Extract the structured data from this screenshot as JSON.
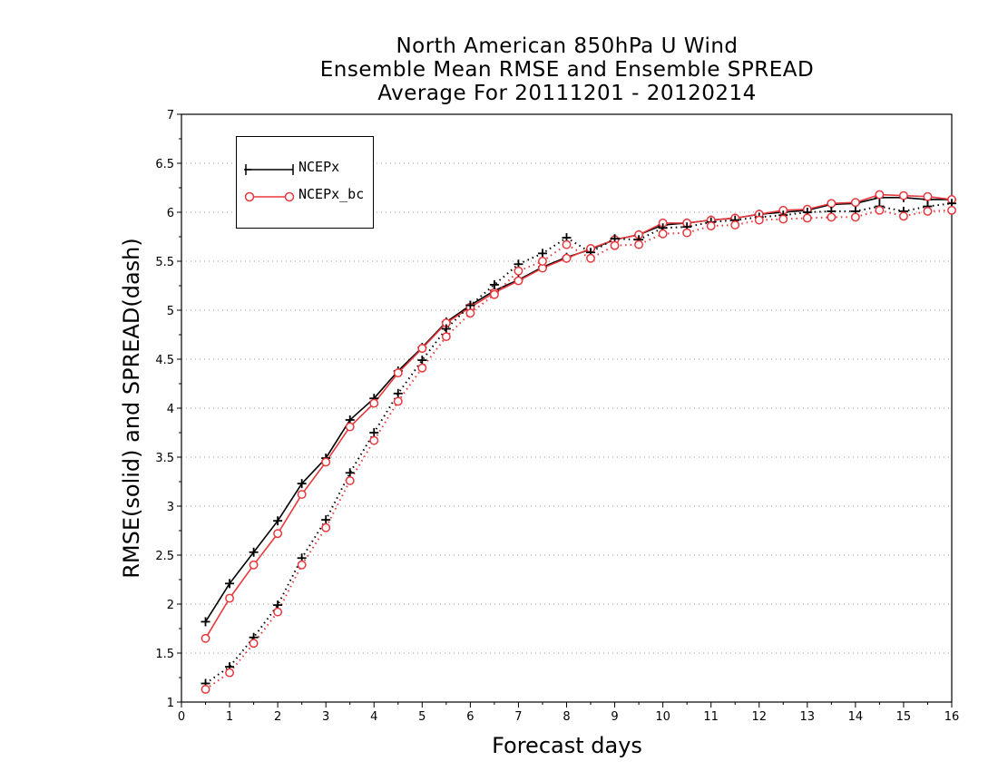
{
  "chart_data": {
    "type": "line",
    "title": [
      "North American 850hPa U Wind",
      "Ensemble Mean RMSE and Ensemble SPREAD",
      "Average For 20111201 - 20120214"
    ],
    "xlabel": "Forecast days",
    "ylabel": "RMSE(solid) and SPREAD(dash)",
    "xlim": [
      0,
      16
    ],
    "ylim": [
      1,
      7
    ],
    "xticks": [
      "0",
      "1",
      "2",
      "3",
      "4",
      "5",
      "6",
      "7",
      "8",
      "9",
      "10",
      "11",
      "12",
      "13",
      "14",
      "15",
      "16"
    ],
    "yticks": [
      "1",
      "1.5",
      "2",
      "2.5",
      "3",
      "3.5",
      "4",
      "4.5",
      "5",
      "5.5",
      "6",
      "6.5",
      "7"
    ],
    "grid": "horizontal dotted",
    "legend_position": "top-left",
    "x": [
      0.5,
      1,
      1.5,
      2,
      2.5,
      3,
      3.5,
      4,
      4.5,
      5,
      5.5,
      6,
      6.5,
      7,
      7.5,
      8,
      8.5,
      9,
      9.5,
      10,
      10.5,
      11,
      11.5,
      12,
      12.5,
      13,
      13.5,
      14,
      14.5,
      15,
      15.5,
      16
    ],
    "series": [
      {
        "name": "NCEPx",
        "metric": "RMSE",
        "style": "solid",
        "marker": "plus",
        "color": "#000000",
        "values": [
          1.82,
          2.21,
          2.53,
          2.85,
          3.23,
          3.49,
          3.88,
          4.1,
          4.38,
          4.62,
          4.88,
          5.05,
          5.2,
          5.31,
          5.44,
          5.54,
          5.62,
          5.72,
          5.77,
          5.87,
          5.89,
          5.92,
          5.94,
          5.98,
          6.0,
          6.02,
          6.08,
          6.09,
          6.15,
          6.15,
          6.13,
          6.13
        ]
      },
      {
        "name": "NCEPx_bc",
        "metric": "RMSE",
        "style": "solid",
        "marker": "circle",
        "color": "#e8383d",
        "values": [
          1.65,
          2.06,
          2.4,
          2.72,
          3.12,
          3.45,
          3.81,
          4.05,
          4.36,
          4.61,
          4.87,
          5.03,
          5.18,
          5.3,
          5.43,
          5.53,
          5.63,
          5.72,
          5.77,
          5.89,
          5.89,
          5.92,
          5.94,
          5.98,
          6.02,
          6.03,
          6.09,
          6.1,
          6.18,
          6.17,
          6.16,
          6.13
        ]
      },
      {
        "name": "NCEPx",
        "metric": "SPREAD",
        "style": "dash",
        "marker": "plus",
        "color": "#000000",
        "values": [
          1.19,
          1.36,
          1.66,
          1.99,
          2.47,
          2.86,
          3.34,
          3.75,
          4.15,
          4.49,
          4.81,
          5.05,
          5.26,
          5.47,
          5.58,
          5.74,
          5.59,
          5.73,
          5.72,
          5.84,
          5.85,
          5.9,
          5.92,
          5.95,
          5.97,
          6.0,
          6.01,
          6.01,
          6.06,
          6.01,
          6.06,
          6.09
        ]
      },
      {
        "name": "NCEPx_bc",
        "metric": "SPREAD",
        "style": "dash",
        "marker": "circle",
        "color": "#e8383d",
        "values": [
          1.13,
          1.3,
          1.6,
          1.92,
          2.4,
          2.78,
          3.26,
          3.67,
          4.07,
          4.41,
          4.73,
          4.97,
          5.16,
          5.4,
          5.5,
          5.67,
          5.53,
          5.66,
          5.67,
          5.78,
          5.79,
          5.86,
          5.87,
          5.92,
          5.93,
          5.94,
          5.95,
          5.95,
          6.02,
          5.96,
          6.01,
          6.02
        ]
      }
    ]
  },
  "legend": {
    "items": [
      {
        "label": "NCEPx",
        "color": "#000000",
        "marker": "plus"
      },
      {
        "label": "NCEPx_bc",
        "color": "#e8383d",
        "marker": "circle"
      }
    ]
  }
}
